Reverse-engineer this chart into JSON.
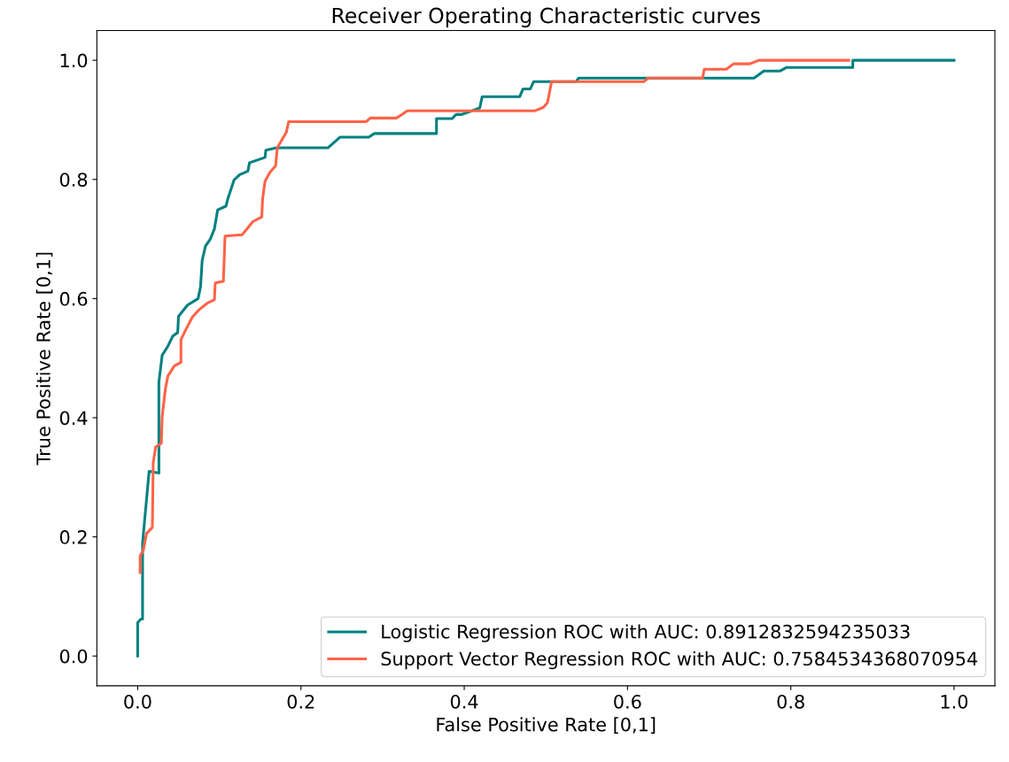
{
  "chart_data": {
    "type": "line",
    "title": "Receiver Operating Characteristic curves",
    "xlabel": "False Positive Rate [0,1]",
    "ylabel": "True Positive Rate [0,1]",
    "xlim": [
      -0.05,
      1.05
    ],
    "ylim": [
      -0.05,
      1.05
    ],
    "xticks": [
      {
        "value": 0,
        "label": "0.0"
      },
      0.2,
      0.4,
      0.6,
      0.8,
      {
        "value": 1,
        "label": "1.0"
      }
    ],
    "yticks": [
      {
        "value": 0,
        "label": "0.0"
      },
      0.2,
      0.4,
      0.6,
      0.8,
      {
        "value": 1,
        "label": "1.0"
      }
    ],
    "grid": false,
    "legend": "bottom right",
    "marker": "none",
    "line_style": "solid",
    "series": [
      {
        "name": "Logistic Regression ROC with AUC: 0.8912832594235033",
        "color": "#008080",
        "x": [
          0,
          0,
          0.004,
          0.006,
          0.006,
          0.01,
          0.014,
          0.026,
          0.026,
          0.03,
          0.037,
          0.043,
          0.049,
          0.05,
          0.061,
          0.074,
          0.077,
          0.079,
          0.083,
          0.089,
          0.094,
          0.098,
          0.108,
          0.111,
          0.118,
          0.125,
          0.135,
          0.137,
          0.156,
          0.157,
          0.17,
          0.233,
          0.248,
          0.283,
          0.29,
          0.366,
          0.366,
          0.385,
          0.39,
          0.397,
          0.419,
          0.422,
          0.468,
          0.472,
          0.481,
          0.485,
          0.537,
          0.54,
          0.755,
          0.767,
          0.787,
          0.795,
          0.876,
          0.876,
          1.0
        ],
        "values": [
          0,
          0.056,
          0.062,
          0.062,
          0.19,
          0.25,
          0.31,
          0.307,
          0.46,
          0.505,
          0.52,
          0.537,
          0.543,
          0.57,
          0.589,
          0.6,
          0.62,
          0.664,
          0.688,
          0.7,
          0.717,
          0.749,
          0.755,
          0.77,
          0.799,
          0.808,
          0.814,
          0.828,
          0.837,
          0.849,
          0.853,
          0.853,
          0.871,
          0.871,
          0.877,
          0.877,
          0.902,
          0.902,
          0.909,
          0.909,
          0.92,
          0.939,
          0.939,
          0.952,
          0.952,
          0.964,
          0.964,
          0.97,
          0.97,
          0.982,
          0.982,
          0.988,
          0.988,
          1.0,
          1.0
        ]
      },
      {
        "name": "Support Vector Regression ROC with AUC: 0.7584534368070954",
        "color": "#ff6347",
        "x": [
          0.003,
          0.003,
          0.007,
          0.011,
          0.018,
          0.019,
          0.022,
          0.029,
          0.03,
          0.034,
          0.037,
          0.045,
          0.053,
          0.053,
          0.059,
          0.067,
          0.075,
          0.085,
          0.094,
          0.095,
          0.105,
          0.107,
          0.128,
          0.141,
          0.152,
          0.153,
          0.156,
          0.162,
          0.169,
          0.171,
          0.182,
          0.185,
          0.28,
          0.285,
          0.317,
          0.326,
          0.33,
          0.486,
          0.497,
          0.502,
          0.507,
          0.62,
          0.625,
          0.692,
          0.694,
          0.721,
          0.73,
          0.75,
          0.761,
          0.871
        ],
        "values": [
          0.14,
          0.168,
          0.178,
          0.206,
          0.216,
          0.324,
          0.351,
          0.357,
          0.402,
          0.449,
          0.47,
          0.487,
          0.493,
          0.531,
          0.548,
          0.569,
          0.581,
          0.592,
          0.598,
          0.626,
          0.629,
          0.705,
          0.707,
          0.729,
          0.737,
          0.767,
          0.797,
          0.812,
          0.823,
          0.853,
          0.879,
          0.897,
          0.897,
          0.903,
          0.903,
          0.911,
          0.915,
          0.915,
          0.921,
          0.929,
          0.964,
          0.964,
          0.97,
          0.97,
          0.985,
          0.985,
          0.994,
          0.994,
          1.0,
          1.0
        ]
      }
    ]
  }
}
